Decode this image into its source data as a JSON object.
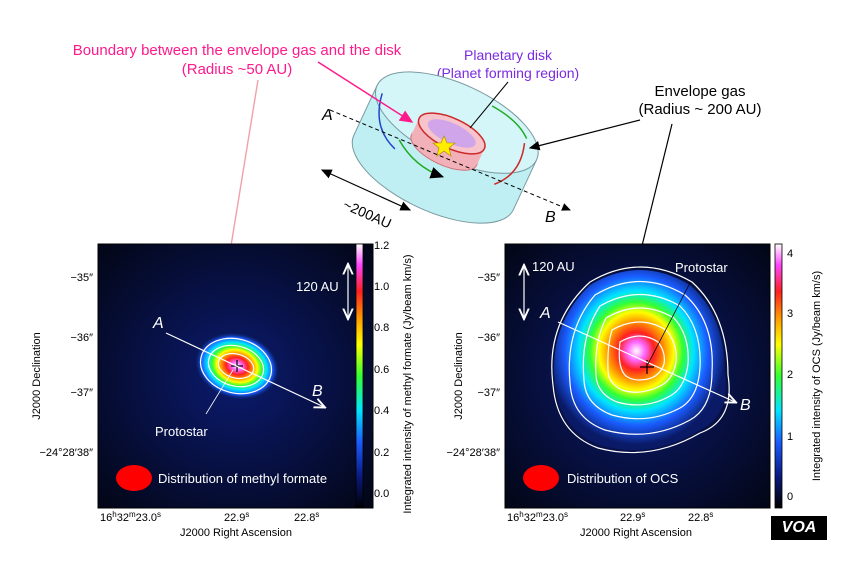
{
  "annotations": {
    "boundary_line1": "Boundary between the envelope gas and the disk",
    "boundary_line2": "(Radius ~50 AU)",
    "planetary_disk_line1": "Planetary disk",
    "planetary_disk_line2": "(Planet forming region)",
    "envelope_line1": "Envelope gas",
    "envelope_line2": "(Radius ~ 200 AU)",
    "scale_200": "~200AU",
    "point_a": "A",
    "point_b": "B"
  },
  "left_panel": {
    "scale_label": "120 AU",
    "protostar_label": "Protostar",
    "legend_label": "Distribution of methyl formate",
    "colorbar_label": "Integrated intensity of methyl formate (Jy/beam km/s)",
    "colorbar_ticks": [
      "0.0",
      "0.2",
      "0.4",
      "0.6",
      "0.8",
      "1.0",
      "1.2"
    ],
    "dec_ticks": [
      "−35″",
      "−36″",
      "−37″",
      "−24°28′38″"
    ],
    "ra_tick_main": "16",
    "ra_tick_h": "h",
    "ra_tick_32": "32",
    "ra_tick_m": "m",
    "ra_tick_230": "23.0",
    "ra_tick_s": "s",
    "ra_tick_229": "22.9",
    "ra_tick_228": "22.8",
    "xlabel": "J2000 Right Ascension",
    "ylabel": "J2000 Declination",
    "point_a": "A",
    "point_b": "B"
  },
  "right_panel": {
    "scale_label": "120 AU",
    "protostar_label": "Protostar",
    "legend_label": "Distribution of OCS",
    "colorbar_label": "Integrated intensity of OCS (Jy/beam km/s)",
    "colorbar_ticks": [
      "0",
      "1",
      "2",
      "3",
      "4"
    ],
    "dec_ticks": [
      "−35″",
      "−36″",
      "−37″",
      "−24°28′38″"
    ],
    "ra_tick_main": "16",
    "ra_tick_h": "h",
    "ra_tick_32": "32",
    "ra_tick_m": "m",
    "ra_tick_230": "23.0",
    "ra_tick_s": "s",
    "ra_tick_229": "22.9",
    "ra_tick_228": "22.8",
    "xlabel": "J2000 Right Ascension",
    "ylabel": "J2000 Declination",
    "point_a": "A",
    "point_b": "B"
  },
  "watermark": "VOA",
  "colors": {
    "magenta_label": "#ff1a8c",
    "purple_label": "#7a2be0",
    "envelope_fill": "#bfeff2",
    "disk_fill": "#f2b0b8"
  }
}
